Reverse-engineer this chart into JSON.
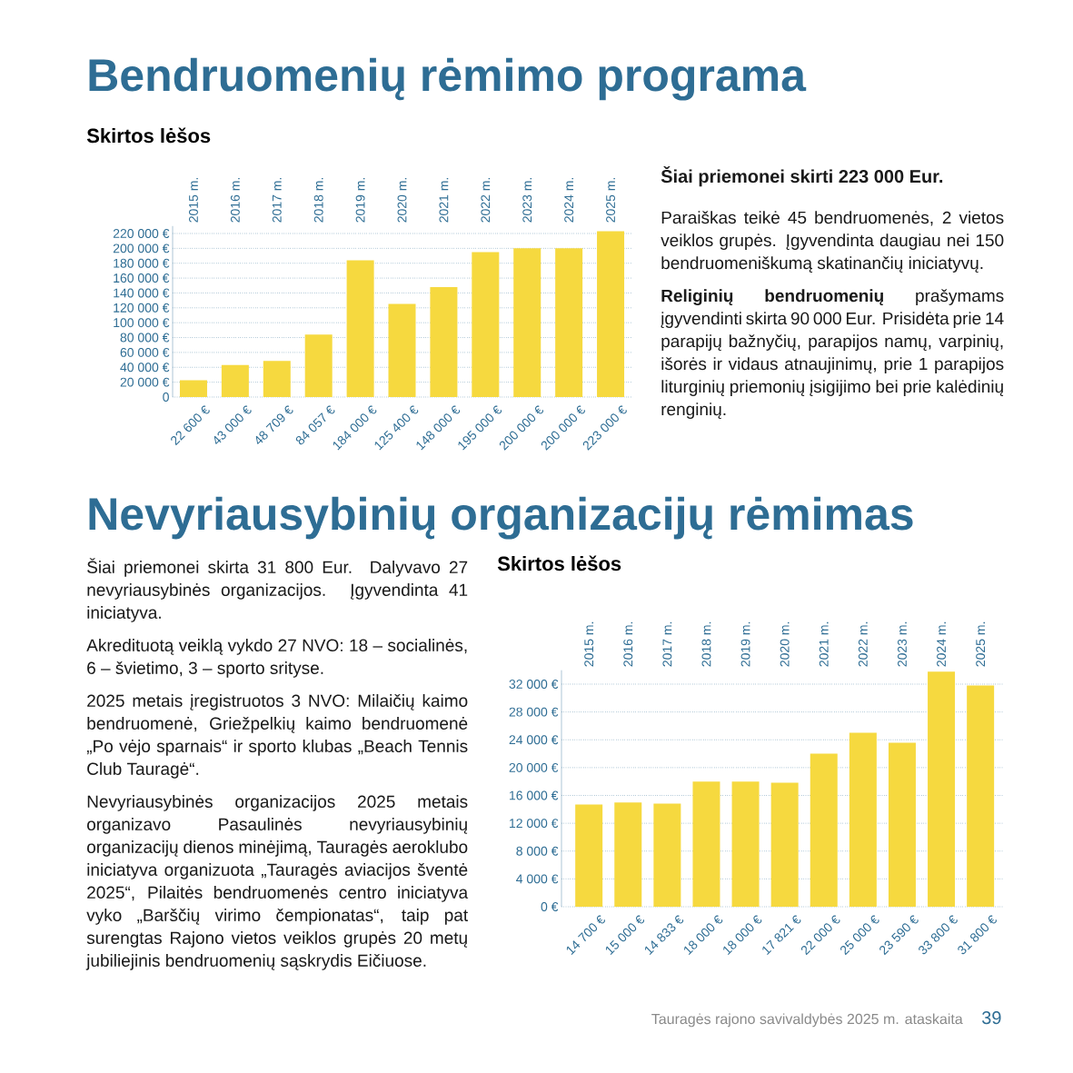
{
  "chart_data": [
    {
      "type": "bar",
      "title": "Bendruomenių rėmimo programa",
      "subtitle": "Skirtos lėšos",
      "categories": [
        "2015 m.",
        "2016 m.",
        "2017 m.",
        "2018 m.",
        "2019 m.",
        "2020 m.",
        "2021 m.",
        "2022 m.",
        "2023 m.",
        "2024 m.",
        "2025 m."
      ],
      "values": [
        22600,
        43000,
        48709,
        84057,
        184000,
        125400,
        148000,
        195000,
        200000,
        200000,
        223000
      ],
      "value_labels": [
        "22 600 €",
        "43 000 €",
        "48 709 €",
        "84 057 €",
        "184 000 €",
        "125 400 €",
        "148 000 €",
        "195 000 €",
        "200 000 €",
        "200 000 €",
        "223 000 €"
      ],
      "color": "#f6d93f",
      "ylim": [
        0,
        230000
      ],
      "yticks": [
        0,
        {
          "value": 20000,
          "label": "20 000 €"
        },
        {
          "value": 40000,
          "label": "40 000 €"
        },
        {
          "value": 60000,
          "label": "60 000 €"
        },
        {
          "value": 80000,
          "label": "80 000 €"
        },
        {
          "value": 100000,
          "label": "100 000 €"
        },
        {
          "value": 120000,
          "label": "120 000 €"
        },
        {
          "value": 140000,
          "label": "140 000 €"
        },
        {
          "value": 160000,
          "label": "160 000 €"
        },
        {
          "value": 180000,
          "label": "180 000 €"
        },
        {
          "value": 200000,
          "label": "200 000 €"
        },
        {
          "value": 220000,
          "label": "220 000 €"
        }
      ],
      "grid": "y"
    },
    {
      "type": "other",
      "title": "Šiai priemonei skirti 223 000 Eur.",
      "annotations": [
        "Paraiškas teikė 45 bendruomenės, 2 vietos veiklos grupės. Įgyvendinta daugiau nei 150 bendruomeniškumą skatinančių iniciatyvų.",
        "**Religinių bendruomenių** prašymams įgyvendinti skirta 90 000 Eur. Prisidėta prie 14 parapijų bažnyčių, parapijos namų, varpinių, išorės ir vidaus atnaujinimų, prie 1 parapijos liturginių priemonių įsigijimo bei prie kalėdinių renginių."
      ]
    },
    {
      "type": "other",
      "title": "Nevyriausybinių organizacijų rėmimas",
      "annotations": [
        "Šiai priemonei skirta 31 800 Eur. Dalyvavo 27 nevyriausybinės organizacijos. Įgyvendinta 41 iniciatyva.",
        "Akredituotą veiklą vykdo 27 NVO: 18 – socialinės, 6 – švietimo, 3 – sporto srityse.",
        "2025 metais įregistruotos 3 NVO: Milaičių kaimo bendruomenė, Griežpelkių kaimo bendruomenė „Po vėjo sparnais“ ir sporto klubas „Beach Tennis Club Tauragė“.",
        "Nevyriausybinės organizacijos 2025 metais organizavo Pasaulinės nevyriausybinių organizacijų dienos minėjimą, Tauragės aeroklubo iniciatyva organizuota „Tauragės aviacijos šventė 2025“, Pilaitės bendruomenės centro iniciatyva vyko „Barščių virimo čempionatas“, taip pat surengtas Rajono vietos veiklos grupės 20 metų jubiliejinis bendruomenių sąskrydis Eičiuose."
      ]
    },
    {
      "type": "bar",
      "title": "Skirtos lėšos",
      "categories": [
        "2015 m.",
        "2016 m.",
        "2017 m.",
        "2018 m.",
        "2019 m.",
        "2020 m.",
        "2021 m.",
        "2022 m.",
        "2023 m.",
        "2024 m.",
        "2025 m."
      ],
      "values": [
        14700,
        15000,
        14833,
        18000,
        18000,
        17821,
        22000,
        25000,
        23590,
        33800,
        31800
      ],
      "value_labels": [
        "14 700 €",
        "15 000 €",
        "14 833 €",
        "18 000 €",
        "18 000 €",
        "17 821 €",
        "22 000 €",
        "25 000 €",
        "23 590 €",
        "33 800 €",
        "31 800 €"
      ],
      "color": "#f6d93f",
      "ylim": [
        0,
        34000
      ],
      "yticks": [
        {
          "value": 0,
          "label": "0 €"
        },
        {
          "value": 4000,
          "label": "4 000 €"
        },
        {
          "value": 8000,
          "label": "8 000 €"
        },
        {
          "value": 12000,
          "label": "12 000 €"
        },
        {
          "value": 16000,
          "label": "16 000 €"
        },
        {
          "value": 20000,
          "label": "20 000 €"
        },
        {
          "value": 24000,
          "label": "24 000 €"
        },
        {
          "value": 28000,
          "label": "28 000 €"
        },
        {
          "value": 32000,
          "label": "32 000 €"
        }
      ],
      "grid": "y",
      "annotations": [
        "Tauragės rajono savivaldybės 2025 m. ataskaita",
        "39"
      ]
    }
  ]
}
